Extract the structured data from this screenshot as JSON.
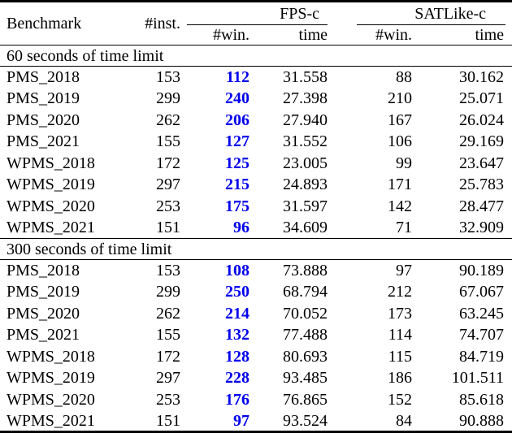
{
  "table": {
    "win_highlight_color": "#0000ee",
    "header": {
      "benchmark": "Benchmark",
      "inst": "#inst.",
      "fps_group": "FPS-c",
      "sat_group": "SATLike-c",
      "win": "#win.",
      "time": "time"
    },
    "sections": [
      {
        "title": "60 seconds of time limit",
        "rows": [
          {
            "benchmark": "PMS_2018",
            "inst": "153",
            "fps_win": "112",
            "fps_time": "31.558",
            "sat_win": "88",
            "sat_time": "30.162"
          },
          {
            "benchmark": "PMS_2019",
            "inst": "299",
            "fps_win": "240",
            "fps_time": "27.398",
            "sat_win": "210",
            "sat_time": "25.071"
          },
          {
            "benchmark": "PMS_2020",
            "inst": "262",
            "fps_win": "206",
            "fps_time": "27.940",
            "sat_win": "167",
            "sat_time": "26.024"
          },
          {
            "benchmark": "PMS_2021",
            "inst": "155",
            "fps_win": "127",
            "fps_time": "31.552",
            "sat_win": "106",
            "sat_time": "29.169"
          },
          {
            "benchmark": "WPMS_2018",
            "inst": "172",
            "fps_win": "125",
            "fps_time": "23.005",
            "sat_win": "99",
            "sat_time": "23.647"
          },
          {
            "benchmark": "WPMS_2019",
            "inst": "297",
            "fps_win": "215",
            "fps_time": "24.893",
            "sat_win": "171",
            "sat_time": "25.783"
          },
          {
            "benchmark": "WPMS_2020",
            "inst": "253",
            "fps_win": "175",
            "fps_time": "31.597",
            "sat_win": "142",
            "sat_time": "28.477"
          },
          {
            "benchmark": "WPMS_2021",
            "inst": "151",
            "fps_win": "96",
            "fps_time": "34.609",
            "sat_win": "71",
            "sat_time": "32.909"
          }
        ]
      },
      {
        "title": "300 seconds of time limit",
        "rows": [
          {
            "benchmark": "PMS_2018",
            "inst": "153",
            "fps_win": "108",
            "fps_time": "73.888",
            "sat_win": "97",
            "sat_time": "90.189"
          },
          {
            "benchmark": "PMS_2019",
            "inst": "299",
            "fps_win": "250",
            "fps_time": "68.794",
            "sat_win": "212",
            "sat_time": "67.067"
          },
          {
            "benchmark": "PMS_2020",
            "inst": "262",
            "fps_win": "214",
            "fps_time": "70.052",
            "sat_win": "173",
            "sat_time": "63.245"
          },
          {
            "benchmark": "PMS_2021",
            "inst": "155",
            "fps_win": "132",
            "fps_time": "77.488",
            "sat_win": "114",
            "sat_time": "74.707"
          },
          {
            "benchmark": "WPMS_2018",
            "inst": "172",
            "fps_win": "128",
            "fps_time": "80.693",
            "sat_win": "115",
            "sat_time": "84.719"
          },
          {
            "benchmark": "WPMS_2019",
            "inst": "297",
            "fps_win": "228",
            "fps_time": "93.485",
            "sat_win": "186",
            "sat_time": "101.511"
          },
          {
            "benchmark": "WPMS_2020",
            "inst": "253",
            "fps_win": "176",
            "fps_time": "76.865",
            "sat_win": "152",
            "sat_time": "85.618"
          },
          {
            "benchmark": "WPMS_2021",
            "inst": "151",
            "fps_win": "97",
            "fps_time": "93.524",
            "sat_win": "84",
            "sat_time": "90.888"
          }
        ]
      }
    ]
  }
}
